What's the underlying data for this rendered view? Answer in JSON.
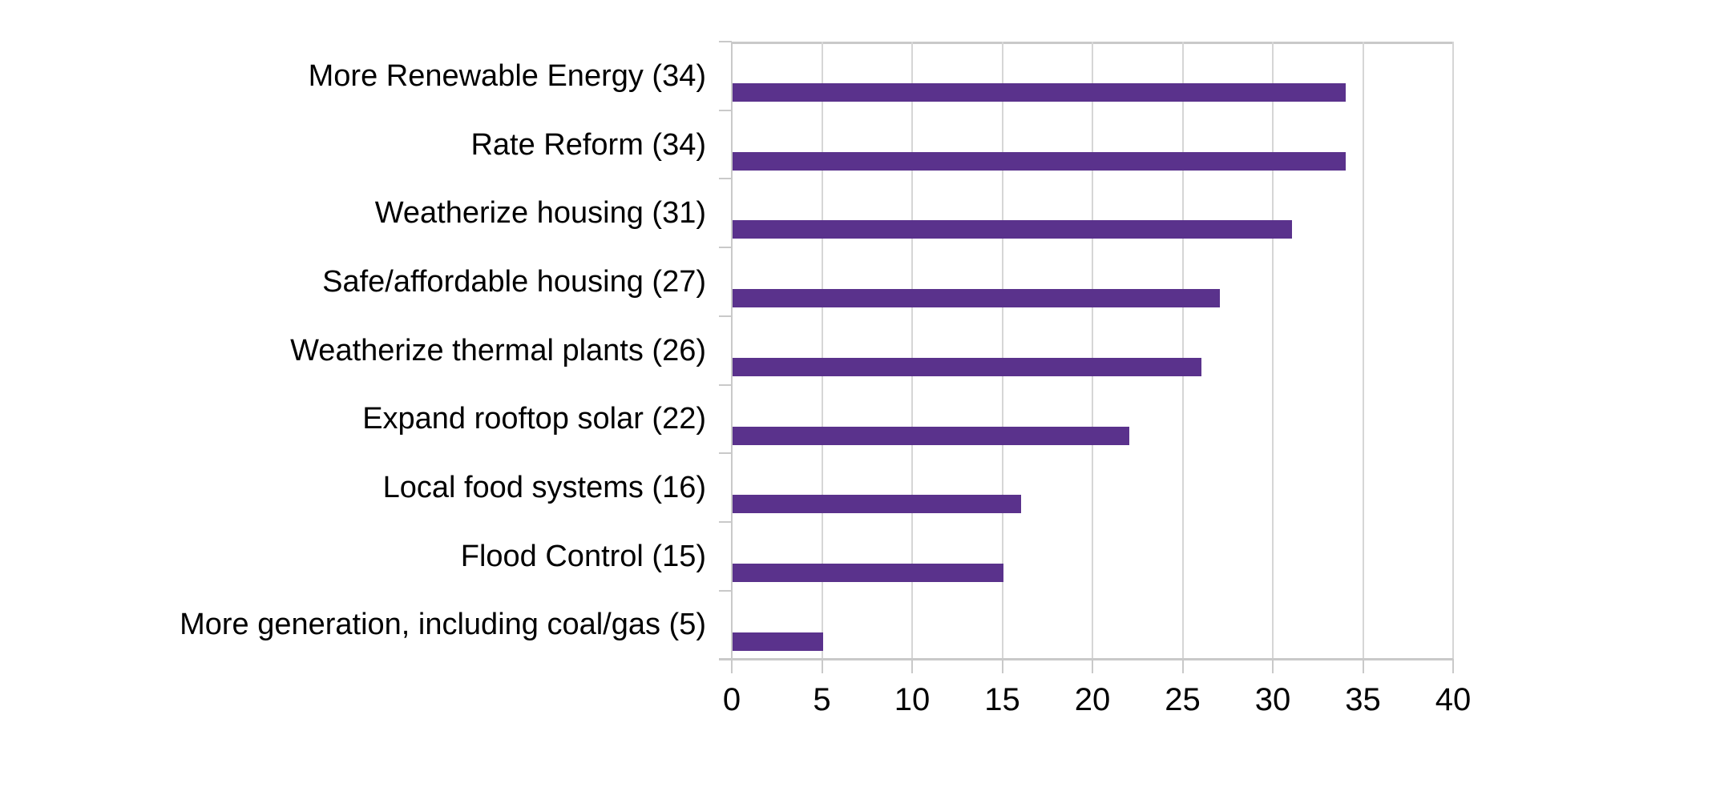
{
  "chart_data": {
    "type": "bar",
    "orientation": "horizontal",
    "title": "",
    "xlabel": "",
    "ylabel": "",
    "categories": [
      "More Renewable Energy (34)",
      "Rate Reform (34)",
      "Weatherize housing (31)",
      "Safe/affordable housing (27)",
      "Weatherize thermal plants (26)",
      "Expand rooftop solar (22)",
      "Local food systems (16)",
      "Flood Control (15)",
      "More generation, including coal/gas (5)"
    ],
    "values": [
      34,
      34,
      31,
      27,
      26,
      22,
      16,
      15,
      5
    ],
    "xlim": [
      0,
      40
    ],
    "x_ticks": [
      0,
      5,
      10,
      15,
      20,
      25,
      30,
      35,
      40
    ],
    "grid": true,
    "legend": "none",
    "colors": {
      "bar": "#5A328C",
      "gridline": "#D6D6D6",
      "axis": "#C9C9C9",
      "text": "#000000",
      "background": "#FFFFFF"
    }
  }
}
